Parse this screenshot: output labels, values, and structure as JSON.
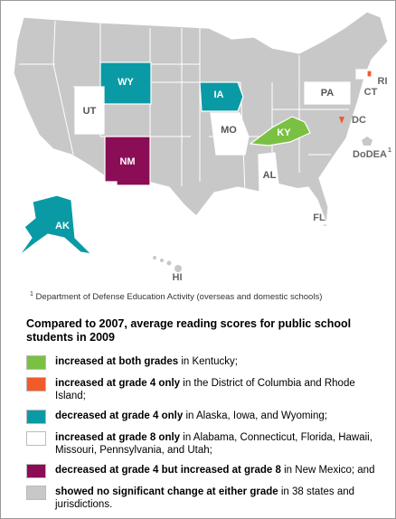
{
  "map": {
    "labels": {
      "WY": "WY",
      "UT": "UT",
      "IA": "IA",
      "MO": "MO",
      "KY": "KY",
      "PA": "PA",
      "CT": "CT",
      "RI": "RI",
      "DC": "DC",
      "NM": "NM",
      "AL": "AL",
      "FL": "FL",
      "AK": "AK",
      "HI": "HI",
      "DoDEA": "DoDEA",
      "DoDEA_marker": "1"
    },
    "footnote": {
      "marker": "1",
      "text": "Department of Defense Education Activity (overseas and domestic schools)"
    }
  },
  "legend": {
    "title": "Compared to 2007, average reading scores for public school students in 2009",
    "items": [
      {
        "color": "#7ac143",
        "bold": "increased at both grades",
        "text": " in Kentucky;"
      },
      {
        "color": "#f15a29",
        "bold": "increased at grade 4 only",
        "text": " in the District of Columbia and Rhode Island;"
      },
      {
        "color": "#0a9aa5",
        "bold": "decreased at grade 4 only",
        "text": " in Alaska, Iowa, and Wyoming;"
      },
      {
        "color": "#ffffff",
        "bold": "increased at grade 8 only",
        "text": " in Alabama, Connecticut, Florida, Hawaii, Missouri, Pennsylvania, and Utah;"
      },
      {
        "color": "#8b0d55",
        "bold": "decreased at grade 4 but increased at grade 8",
        "text": " in New Mexico; and"
      },
      {
        "color": "#c8c8c8",
        "bold": "showed no significant change at either grade",
        "text": " in 38 states and jurisdictions."
      }
    ]
  }
}
